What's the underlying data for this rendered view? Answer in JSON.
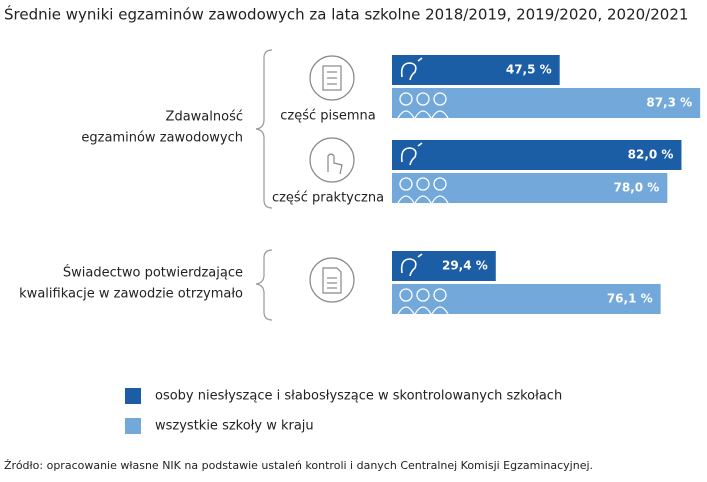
{
  "chart_data": {
    "type": "bar",
    "title": "Średnie wyniki egzaminów zawodowych za lata szkolne 2018/2019, 2019/2020, 2020/2021",
    "group_labels": [
      [
        "Zdawalność",
        "egzaminów zawodowych"
      ],
      [
        "Świadectwo potwierdzające",
        "kwalifikacje w zawodzie otrzymało"
      ]
    ],
    "categories": [
      "część pisemna",
      "część praktyczna",
      null
    ],
    "series": [
      {
        "name": "osoby niesłyszące i słabosłyszące w skontrolowanych szkołach",
        "color": "#1b5ea6",
        "values": [
          47.5,
          82.0,
          29.4
        ],
        "value_labels": [
          "47,5 %",
          "82,0 %",
          "29,4 %"
        ]
      },
      {
        "name": "wszystkie szkoły w kraju",
        "color": "#72a8da",
        "values": [
          87.3,
          78.0,
          76.1
        ],
        "value_labels": [
          "87,3 %",
          "78,0 %",
          "76,1 %"
        ]
      }
    ],
    "source": "Źródło: opracowanie własne NIK na podstawie ustaleń kontroli i danych Centralnej Komisji Egzaminacyjnej."
  }
}
